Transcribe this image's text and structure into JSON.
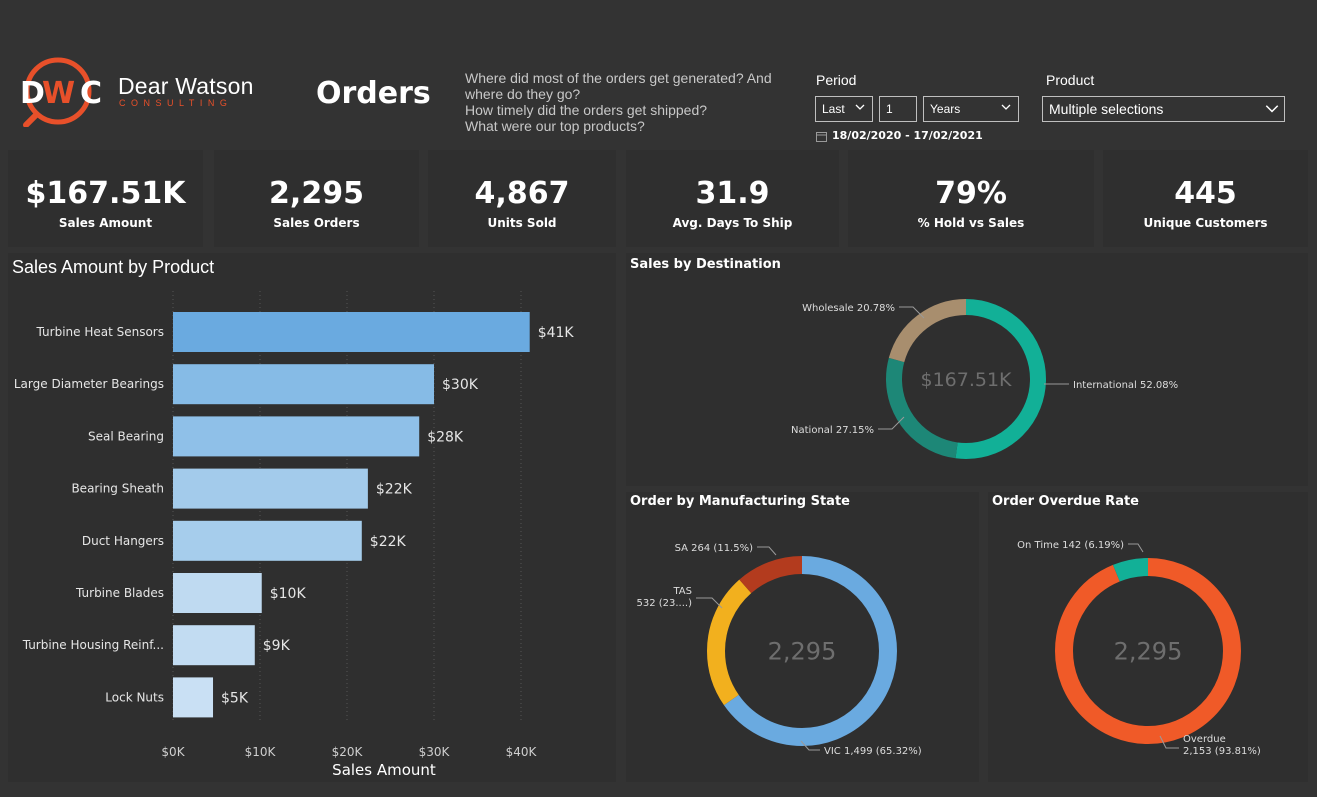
{
  "logo": {
    "main": "Dear Watson",
    "sub": "CONSULTING",
    "mark": "DWC"
  },
  "page_title": "Orders",
  "questions": [
    "Where did most of the orders get generated? And where do they go?",
    "How timely did the orders get shipped?",
    "What were our top products?"
  ],
  "filters": {
    "period_label": "Period",
    "period_mode": "Last",
    "period_count": "1",
    "period_unit": "Years",
    "date_range": "18/02/2020 - 17/02/2021",
    "product_label": "Product",
    "product_value": "Multiple selections"
  },
  "kpis": [
    {
      "value": "$167.51K",
      "label": "Sales Amount"
    },
    {
      "value": "2,295",
      "label": "Sales Orders"
    },
    {
      "value": "4,867",
      "label": "Units Sold"
    },
    {
      "value": "31.9",
      "label": "Avg. Days To Ship"
    },
    {
      "value": "79%",
      "label": "% Hold vs Sales"
    },
    {
      "value": "445",
      "label": "Unique Customers"
    }
  ],
  "chart_data": [
    {
      "type": "bar",
      "orientation": "horizontal",
      "title": "Sales Amount by Product",
      "xlabel": "Sales Amount",
      "ylabel": "",
      "xlim": [
        0,
        40000
      ],
      "x_ticks": [
        "$0K",
        "$10K",
        "$20K",
        "$30K",
        "$40K"
      ],
      "grid": "vertical dotted",
      "categories": [
        "Turbine Heat Sensors",
        "Large Diameter Bearings",
        "Seal Bearing",
        "Bearing Sheath",
        "Duct Hangers",
        "Turbine Blades",
        "Turbine Housing Reinf...",
        "Lock Nuts"
      ],
      "values": [
        41000,
        30000,
        28300,
        22400,
        21700,
        10200,
        9400,
        4600
      ],
      "data_labels": [
        "$41K",
        "$30K",
        "$28K",
        "$22K",
        "$22K",
        "$10K",
        "$9K",
        "$5K"
      ],
      "colors": [
        "#6aaae0",
        "#86bbe6",
        "#8fc0e8",
        "#a3cbeb",
        "#a6cdec",
        "#bfdaf1",
        "#c2dcf2",
        "#c9e0f4"
      ]
    },
    {
      "type": "pie",
      "donut": true,
      "title": "Sales by Destination",
      "center_label": "$167.51K",
      "slices": [
        {
          "name": "International",
          "value": 52.08,
          "label": "International 52.08%",
          "color": "#12b097"
        },
        {
          "name": "National",
          "value": 27.15,
          "label": "National 27.15%",
          "color": "#1d8777"
        },
        {
          "name": "Wholesale",
          "value": 20.78,
          "label": "Wholesale 20.78%",
          "color": "#a88e6e"
        }
      ]
    },
    {
      "type": "pie",
      "donut": true,
      "title": "Order by Manufacturing State",
      "center_label": "2,295",
      "slices": [
        {
          "name": "VIC",
          "value": 1499,
          "label": "VIC 1,499 (65.32%)",
          "color": "#6aaae0"
        },
        {
          "name": "TAS",
          "value": 532,
          "label": "532 (23....)",
          "label_line1": "TAS",
          "color": "#f2b01e"
        },
        {
          "name": "SA",
          "value": 264,
          "label": "SA 264 (11.5%)",
          "color": "#b33b1e"
        }
      ]
    },
    {
      "type": "pie",
      "donut": true,
      "title": "Order Overdue Rate",
      "center_label": "2,295",
      "slices": [
        {
          "name": "Overdue",
          "value": 2153,
          "label": "2,153 (93.81%)",
          "label_line1": "Overdue",
          "color": "#f05a28"
        },
        {
          "name": "On Time",
          "value": 142,
          "label": "On Time 142 (6.19%)",
          "color": "#12b097"
        }
      ]
    }
  ]
}
